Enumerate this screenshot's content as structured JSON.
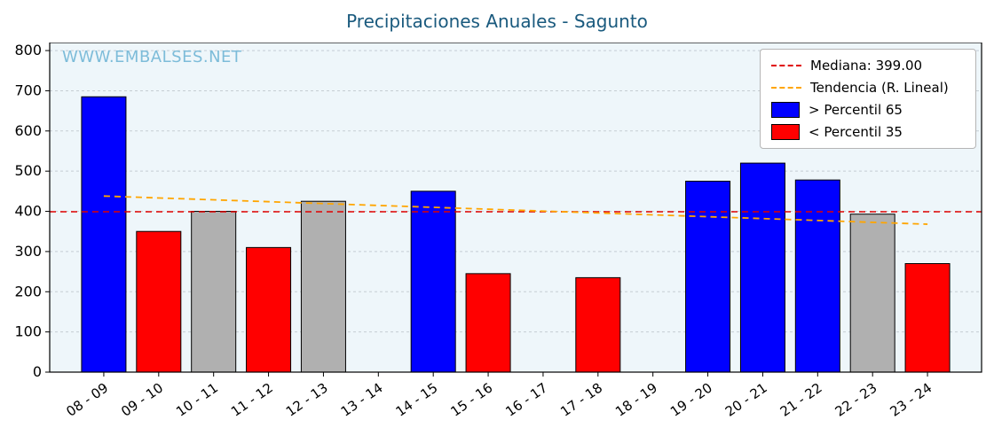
{
  "watermark": "WWW.EMBALSES.NET",
  "chart_data": {
    "type": "bar",
    "title": "Precipitaciones Anuales - Sagunto",
    "categories": [
      "08 - 09",
      "09 - 10",
      "10 - 11",
      "11 - 12",
      "12 - 13",
      "13 - 14",
      "14 - 15",
      "15 - 16",
      "16 - 17",
      "17 - 18",
      "18 - 19",
      "19 - 20",
      "20 - 21",
      "21 - 22",
      "22 - 23",
      "23 - 24"
    ],
    "values": [
      685,
      350,
      400,
      310,
      425,
      null,
      450,
      245,
      null,
      235,
      null,
      475,
      520,
      478,
      393,
      270
    ],
    "bar_classes": [
      "above",
      "below",
      "mid",
      "below",
      "mid",
      "none",
      "above",
      "below",
      "none",
      "below",
      "none",
      "above",
      "above",
      "above",
      "mid",
      "below"
    ],
    "median": 399.0,
    "median_label": "Mediana: 399.00",
    "trend_label": "Tendencia (R. Lineal)",
    "trend_start": 438,
    "trend_end": 368,
    "legend_above": "> Percentil 65",
    "legend_below": "< Percentil 35",
    "xlabel": "",
    "ylabel": "",
    "ylim": [
      0,
      820
    ],
    "yticks": [
      0,
      100,
      200,
      300,
      400,
      500,
      600,
      700,
      800
    ],
    "grid": true,
    "legend_position": "upper-right",
    "colors": {
      "above": "#0000ff",
      "below": "#ff0000",
      "mid": "#b0b0b0",
      "median": "#e00000",
      "trend": "#ffa500",
      "title": "#1a5a7e",
      "watermark": "#7dbcd9",
      "plot_bg": "#eef6fa",
      "grid": "#c5cdd3",
      "bar_edge": "#000000"
    }
  }
}
